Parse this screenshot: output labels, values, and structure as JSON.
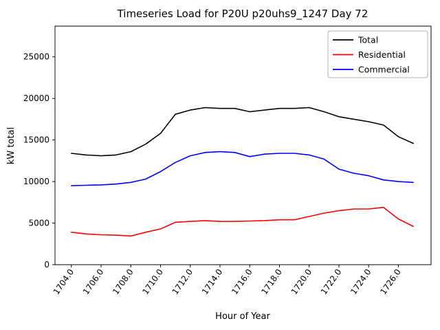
{
  "chart_data": {
    "type": "line",
    "title": "Timeseries Load for P20U p20uhs9_1247  Day 72",
    "xlabel": "Hour of Year",
    "ylabel": "kW total",
    "xlim": [
      1702.9,
      1728.2
    ],
    "ylim": [
      0,
      28700
    ],
    "grid": false,
    "legend_position": "upper right",
    "xticks": [
      1704,
      1706,
      1708,
      1710,
      1712,
      1714,
      1716,
      1718,
      1720,
      1722,
      1724,
      1726
    ],
    "xtick_labels": [
      "1704.0",
      "1706.0",
      "1708.0",
      "1710.0",
      "1712.0",
      "1714.0",
      "1716.0",
      "1718.0",
      "1720.0",
      "1722.0",
      "1724.0",
      "1726.0"
    ],
    "yticks": [
      0,
      5000,
      10000,
      15000,
      20000,
      25000
    ],
    "ytick_labels": [
      "0",
      "5000",
      "10000",
      "15000",
      "20000",
      "25000"
    ],
    "x": [
      1704,
      1705,
      1706,
      1707,
      1708,
      1709,
      1710,
      1711,
      1712,
      1713,
      1714,
      1715,
      1716,
      1717,
      1718,
      1719,
      1720,
      1721,
      1722,
      1723,
      1724,
      1725,
      1726,
      1727
    ],
    "series": [
      {
        "name": "Total",
        "color": "#000000",
        "values": [
          13400,
          13200,
          13100,
          13200,
          13600,
          14500,
          15800,
          18100,
          18600,
          18900,
          18800,
          18800,
          18400,
          18600,
          18800,
          18800,
          18900,
          18400,
          17800,
          17500,
          17200,
          16800,
          15400,
          14600
        ]
      },
      {
        "name": "Residential",
        "color": "#ff0000",
        "values": [
          3900,
          3700,
          3600,
          3550,
          3450,
          3900,
          4300,
          5100,
          5200,
          5300,
          5200,
          5200,
          5250,
          5300,
          5400,
          5400,
          5800,
          6200,
          6500,
          6700,
          6700,
          6900,
          5500,
          4600
        ]
      },
      {
        "name": "Commercial",
        "color": "#0000ff",
        "values": [
          9500,
          9550,
          9600,
          9700,
          9900,
          10300,
          11200,
          12300,
          13100,
          13500,
          13600,
          13500,
          13000,
          13300,
          13400,
          13400,
          13200,
          12700,
          11500,
          11000,
          10700,
          10200,
          10000,
          9900
        ]
      }
    ]
  }
}
